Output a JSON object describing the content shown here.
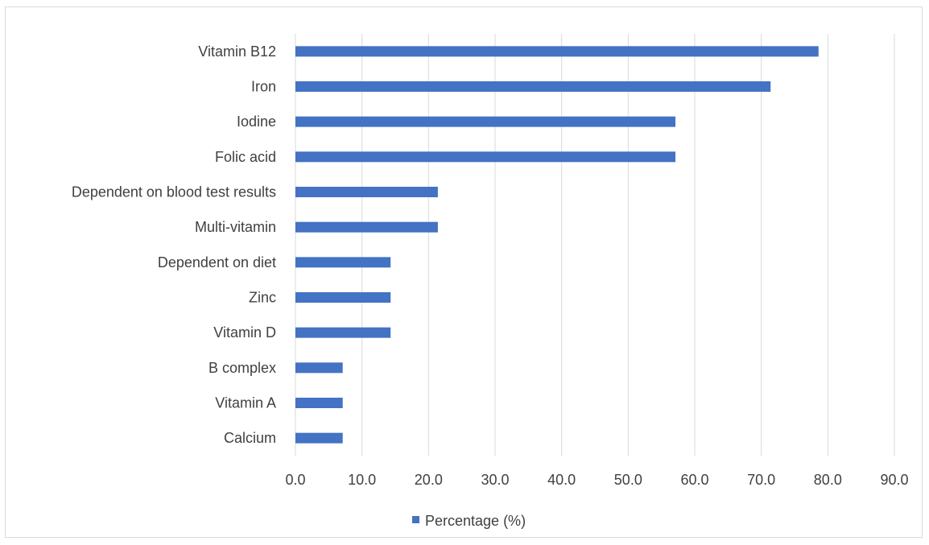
{
  "chart_data": {
    "type": "bar",
    "orientation": "horizontal",
    "categories": [
      "Vitamin B12",
      "Iron",
      "Iodine",
      "Folic acid",
      "Dependent on blood test results",
      "Multi-vitamin ",
      "Dependent on diet",
      "Zinc",
      "Vitamin D",
      "B complex",
      "Vitamin A",
      "Calcium"
    ],
    "series": [
      {
        "name": "Percentage (%)",
        "values": [
          78.6,
          71.4,
          57.1,
          57.1,
          21.4,
          21.4,
          14.3,
          14.3,
          14.3,
          7.1,
          7.1,
          7.1
        ]
      }
    ],
    "xlim": [
      0,
      90
    ],
    "xticks": [
      "0.0",
      "10.0",
      "20.0",
      "30.0",
      "40.0",
      "50.0",
      "60.0",
      "70.0",
      "80.0",
      "90.0"
    ],
    "grid": "vertical",
    "legend_position": "bottom",
    "colors": {
      "bar": "#4472C4",
      "grid": "#d9d9d9",
      "text": "#404040"
    }
  }
}
